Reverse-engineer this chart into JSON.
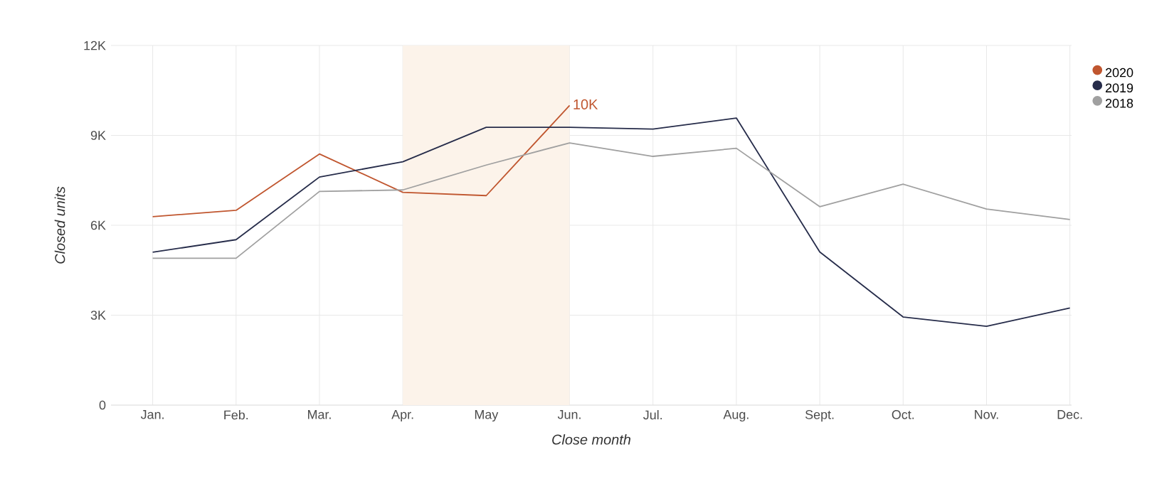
{
  "chart_data": {
    "type": "line",
    "xlabel": "Close month",
    "ylabel": "Closed units",
    "categories": [
      "Jan.",
      "Feb.",
      "Mar.",
      "Apr.",
      "May",
      "Jun.",
      "Jul.",
      "Aug.",
      "Sept.",
      "Oct.",
      "Nov.",
      "Dec."
    ],
    "series": [
      {
        "name": "2020",
        "color": "#c0562f",
        "values": [
          6290,
          6500,
          8380,
          7100,
          6990,
          10000,
          null,
          null,
          null,
          null,
          null,
          null
        ]
      },
      {
        "name": "2019",
        "color": "#262c4a",
        "values": [
          5100,
          5520,
          7610,
          8120,
          9270,
          9270,
          9210,
          9580,
          5110,
          2940,
          2630,
          3240
        ]
      },
      {
        "name": "2018",
        "color": "#a0a0a0",
        "values": [
          4900,
          4900,
          7130,
          7180,
          8010,
          8750,
          8300,
          8570,
          6620,
          7370,
          6540,
          6190
        ]
      }
    ],
    "ylim": [
      0,
      12000
    ],
    "yticks": [
      0,
      {
        "value": 3000,
        "label": "3K"
      },
      {
        "value": 6000,
        "label": "6K"
      },
      {
        "value": 9000,
        "label": "9K"
      },
      {
        "value": 12000,
        "label": "12K"
      }
    ],
    "bands": [
      {
        "axis": "x",
        "from": "Apr.",
        "to": "Jun.",
        "color": "#fcf3ea"
      }
    ],
    "annotations": [
      {
        "text": "10K",
        "x": "Jun.",
        "y": 10000
      }
    ],
    "grid": true,
    "legend": "top right",
    "marker": "none",
    "line_style": "solid"
  }
}
